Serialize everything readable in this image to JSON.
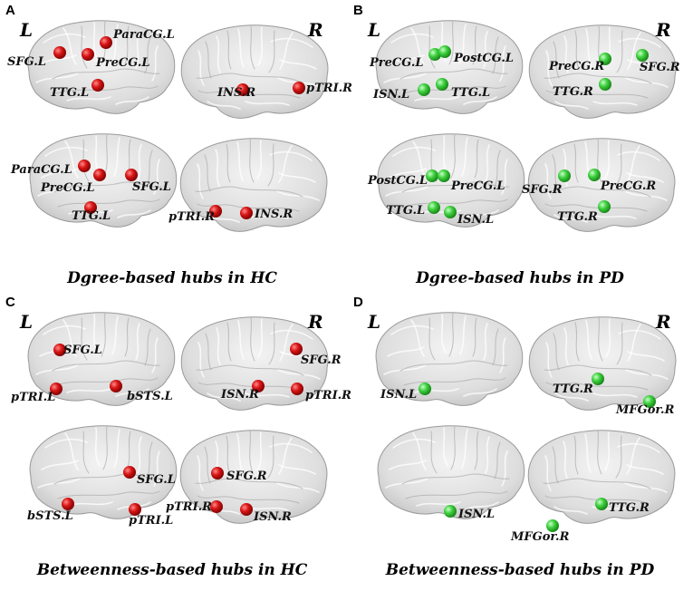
{
  "colors": {
    "hc_node": "#cc1010",
    "pd_node": "#33bb33"
  },
  "hemisphere_labels": {
    "left": "L",
    "right": "R"
  },
  "panels": [
    {
      "id": "A",
      "letter": "A",
      "caption": "Dgree-based hubs in HC",
      "group": "hc",
      "views": [
        {
          "name": "left-lateral",
          "nodes": [
            {
              "label": "ParaCG.L"
            },
            {
              "label": "SFG.L"
            },
            {
              "label": "PreCG.L"
            },
            {
              "label": "TTG.L"
            }
          ]
        },
        {
          "name": "right-lateral",
          "nodes": [
            {
              "label": "INS.R"
            },
            {
              "label": "pTRI.R"
            }
          ]
        },
        {
          "name": "left-medial",
          "nodes": [
            {
              "label": "ParaCG.L"
            },
            {
              "label": "PreCG.L"
            },
            {
              "label": "SFG.L"
            },
            {
              "label": "TTG.L"
            }
          ]
        },
        {
          "name": "right-medial",
          "nodes": [
            {
              "label": "pTRI.R"
            },
            {
              "label": "INS.R"
            }
          ]
        }
      ]
    },
    {
      "id": "B",
      "letter": "B",
      "caption": "Dgree-based hubs in PD",
      "group": "pd",
      "views": [
        {
          "name": "left-lateral",
          "nodes": [
            {
              "label": "PreCG.L"
            },
            {
              "label": "PostCG.L"
            },
            {
              "label": "ISN.L"
            },
            {
              "label": "TTG.L"
            }
          ]
        },
        {
          "name": "right-lateral",
          "nodes": [
            {
              "label": "PreCG.R"
            },
            {
              "label": "SFG.R"
            },
            {
              "label": "TTG.R"
            }
          ]
        },
        {
          "name": "left-medial",
          "nodes": [
            {
              "label": "PostCG.L"
            },
            {
              "label": "PreCG.L"
            },
            {
              "label": "TTG.L"
            },
            {
              "label": "ISN.L"
            }
          ]
        },
        {
          "name": "right-medial",
          "nodes": [
            {
              "label": "SFG.R"
            },
            {
              "label": "PreCG.R"
            },
            {
              "label": "TTG.R"
            }
          ]
        }
      ]
    },
    {
      "id": "C",
      "letter": "C",
      "caption": "Betweenness-based hubs in HC",
      "group": "hc",
      "views": [
        {
          "name": "left-lateral",
          "nodes": [
            {
              "label": "SFG.L"
            },
            {
              "label": "pTRI.L"
            },
            {
              "label": "bSTS.L"
            }
          ]
        },
        {
          "name": "right-lateral",
          "nodes": [
            {
              "label": "SFG.R"
            },
            {
              "label": "ISN.R"
            },
            {
              "label": "pTRI.R"
            }
          ]
        },
        {
          "name": "left-medial",
          "nodes": [
            {
              "label": "SFG.L"
            },
            {
              "label": "bSTS.L"
            },
            {
              "label": "pTRI.L"
            }
          ]
        },
        {
          "name": "right-medial",
          "nodes": [
            {
              "label": "SFG.R"
            },
            {
              "label": "pTRI.R"
            },
            {
              "label": "ISN.R"
            }
          ]
        }
      ]
    },
    {
      "id": "D",
      "letter": "D",
      "caption": "Betweenness-based hubs in PD",
      "group": "pd",
      "views": [
        {
          "name": "left-lateral",
          "nodes": [
            {
              "label": "ISN.L"
            }
          ]
        },
        {
          "name": "right-lateral",
          "nodes": [
            {
              "label": "TTG.R"
            },
            {
              "label": "MFGor.R"
            }
          ]
        },
        {
          "name": "left-medial",
          "nodes": [
            {
              "label": "ISN.L"
            }
          ]
        },
        {
          "name": "right-medial",
          "nodes": [
            {
              "label": "TTG.R"
            },
            {
              "label": "MFGor.R"
            }
          ]
        }
      ]
    }
  ]
}
